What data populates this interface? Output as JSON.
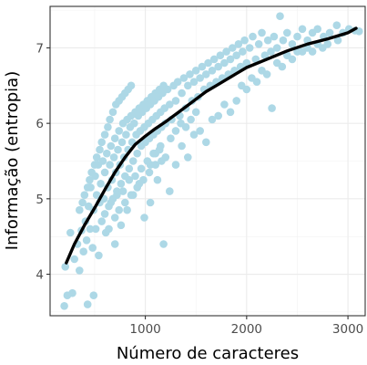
{
  "chart_data": {
    "type": "scatter",
    "title": "",
    "xlabel": "Número de caracteres",
    "ylabel": "Informação (entropia)",
    "x_ticks": [
      1000,
      2000,
      3000
    ],
    "y_ticks": [
      4,
      5,
      6,
      7
    ],
    "xlim": [
      60,
      3170
    ],
    "ylim": [
      3.45,
      7.55
    ],
    "grid": true,
    "legend": "none",
    "colors": {
      "points": "#add8e6",
      "trend": "#000000"
    },
    "trend_line": {
      "x": [
        220,
        300,
        400,
        500,
        600,
        700,
        800,
        900,
        1000,
        1100,
        1200,
        1300,
        1400,
        1500,
        1600,
        1700,
        1800,
        1900,
        2000,
        2200,
        2400,
        2600,
        2800,
        3000,
        3080
      ],
      "y": [
        4.15,
        4.4,
        4.65,
        4.88,
        5.12,
        5.35,
        5.55,
        5.72,
        5.83,
        5.93,
        6.02,
        6.12,
        6.22,
        6.32,
        6.42,
        6.5,
        6.58,
        6.66,
        6.74,
        6.85,
        6.96,
        7.05,
        7.12,
        7.2,
        7.26
      ]
    },
    "points": [
      [
        200,
        3.58
      ],
      [
        230,
        3.72
      ],
      [
        210,
        4.1
      ],
      [
        280,
        3.75
      ],
      [
        430,
        3.6
      ],
      [
        490,
        3.72
      ],
      [
        260,
        4.55
      ],
      [
        300,
        4.2
      ],
      [
        330,
        4.4
      ],
      [
        350,
        4.05
      ],
      [
        370,
        4.58
      ],
      [
        390,
        4.3
      ],
      [
        410,
        4.7
      ],
      [
        420,
        4.45
      ],
      [
        440,
        4.9
      ],
      [
        455,
        4.6
      ],
      [
        460,
        5.15
      ],
      [
        480,
        4.35
      ],
      [
        490,
        4.85
      ],
      [
        505,
        5.3
      ],
      [
        510,
        4.6
      ],
      [
        520,
        5.05
      ],
      [
        535,
        5.45
      ],
      [
        540,
        4.25
      ],
      [
        550,
        4.95
      ],
      [
        560,
        5.2
      ],
      [
        570,
        4.7
      ],
      [
        580,
        5.5
      ],
      [
        590,
        5.0
      ],
      [
        600,
        5.35
      ],
      [
        610,
        4.55
      ],
      [
        620,
        5.6
      ],
      [
        630,
        5.15
      ],
      [
        640,
        4.9
      ],
      [
        650,
        5.45
      ],
      [
        660,
        5.7
      ],
      [
        670,
        5.25
      ],
      [
        680,
        5.0
      ],
      [
        690,
        5.55
      ],
      [
        700,
        5.8
      ],
      [
        710,
        5.35
      ],
      [
        720,
        5.1
      ],
      [
        730,
        5.65
      ],
      [
        740,
        5.9
      ],
      [
        750,
        5.45
      ],
      [
        760,
        5.2
      ],
      [
        770,
        5.75
      ],
      [
        780,
        6.0
      ],
      [
        790,
        5.55
      ],
      [
        800,
        5.3
      ],
      [
        810,
        5.85
      ],
      [
        820,
        6.05
      ],
      [
        830,
        5.65
      ],
      [
        840,
        5.4
      ],
      [
        850,
        5.95
      ],
      [
        860,
        6.1
      ],
      [
        870,
        5.75
      ],
      [
        880,
        5.5
      ],
      [
        890,
        6.0
      ],
      [
        900,
        6.15
      ],
      [
        910,
        5.85
      ],
      [
        920,
        5.6
      ],
      [
        930,
        6.1
      ],
      [
        940,
        6.2
      ],
      [
        950,
        5.9
      ],
      [
        960,
        5.7
      ],
      [
        970,
        6.15
      ],
      [
        980,
        6.25
      ],
      [
        990,
        5.95
      ],
      [
        1000,
        5.75
      ],
      [
        1010,
        6.2
      ],
      [
        1020,
        6.3
      ],
      [
        1030,
        6.0
      ],
      [
        1040,
        5.8
      ],
      [
        1050,
        6.25
      ],
      [
        1060,
        6.35
      ],
      [
        1070,
        6.05
      ],
      [
        1080,
        5.85
      ],
      [
        1090,
        6.3
      ],
      [
        1100,
        6.4
      ],
      [
        1110,
        6.1
      ],
      [
        1120,
        5.9
      ],
      [
        1130,
        6.35
      ],
      [
        1140,
        6.45
      ],
      [
        1150,
        6.15
      ],
      [
        1160,
        5.95
      ],
      [
        1170,
        6.4
      ],
      [
        1180,
        6.5
      ],
      [
        1190,
        6.2
      ],
      [
        1200,
        6.0
      ],
      [
        1220,
        6.45
      ],
      [
        1240,
        6.25
      ],
      [
        1260,
        6.05
      ],
      [
        1280,
        6.5
      ],
      [
        1300,
        6.3
      ],
      [
        1320,
        6.55
      ],
      [
        1340,
        6.1
      ],
      [
        1360,
        6.4
      ],
      [
        1380,
        6.6
      ],
      [
        1400,
        6.2
      ],
      [
        1420,
        6.5
      ],
      [
        1440,
        6.65
      ],
      [
        1460,
        6.3
      ],
      [
        1480,
        6.55
      ],
      [
        1500,
        6.7
      ],
      [
        1520,
        6.35
      ],
      [
        1540,
        6.6
      ],
      [
        1560,
        6.75
      ],
      [
        1580,
        6.45
      ],
      [
        1600,
        6.65
      ],
      [
        1620,
        6.8
      ],
      [
        1640,
        6.5
      ],
      [
        1660,
        6.7
      ],
      [
        1680,
        6.85
      ],
      [
        1700,
        6.55
      ],
      [
        1720,
        6.75
      ],
      [
        1740,
        6.9
      ],
      [
        1760,
        6.6
      ],
      [
        1780,
        6.8
      ],
      [
        1800,
        6.95
      ],
      [
        1820,
        6.65
      ],
      [
        1840,
        6.85
      ],
      [
        1860,
        7.0
      ],
      [
        1880,
        6.7
      ],
      [
        1900,
        6.9
      ],
      [
        1920,
        7.05
      ],
      [
        1940,
        6.75
      ],
      [
        1960,
        6.95
      ],
      [
        1980,
        7.1
      ],
      [
        2000,
        6.8
      ],
      [
        2030,
        7.0
      ],
      [
        2060,
        7.15
      ],
      [
        2090,
        6.85
      ],
      [
        2120,
        7.05
      ],
      [
        2150,
        7.2
      ],
      [
        2180,
        6.9
      ],
      [
        2210,
        7.1
      ],
      [
        2240,
        6.95
      ],
      [
        2270,
        7.15
      ],
      [
        2300,
        7.0
      ],
      [
        2330,
        7.42
      ],
      [
        2360,
        7.1
      ],
      [
        2400,
        7.2
      ],
      [
        2450,
        7.05
      ],
      [
        2500,
        7.15
      ],
      [
        2550,
        7.25
      ],
      [
        2600,
        7.1
      ],
      [
        2650,
        7.2
      ],
      [
        2700,
        7.25
      ],
      [
        2760,
        7.15
      ],
      [
        2820,
        7.2
      ],
      [
        2890,
        7.3
      ],
      [
        2950,
        7.2
      ],
      [
        3010,
        7.25
      ],
      [
        3070,
        7.23
      ],
      [
        3110,
        7.22
      ],
      [
        700,
        4.4
      ],
      [
        760,
        4.65
      ],
      [
        820,
        4.85
      ],
      [
        880,
        5.05
      ],
      [
        940,
        5.2
      ],
      [
        990,
        4.75
      ],
      [
        1050,
        4.95
      ],
      [
        1120,
        5.25
      ],
      [
        1180,
        4.4
      ],
      [
        1240,
        5.1
      ],
      [
        1300,
        5.45
      ],
      [
        1360,
        5.7
      ],
      [
        1420,
        5.55
      ],
      [
        1480,
        5.85
      ],
      [
        1540,
        5.9
      ],
      [
        1600,
        5.75
      ],
      [
        1660,
        6.05
      ],
      [
        1720,
        6.1
      ],
      [
        1780,
        6.25
      ],
      [
        1840,
        6.15
      ],
      [
        1900,
        6.3
      ],
      [
        1950,
        6.5
      ],
      [
        2000,
        6.45
      ],
      [
        2050,
        6.6
      ],
      [
        2100,
        6.55
      ],
      [
        2150,
        6.7
      ],
      [
        2200,
        6.65
      ],
      [
        2250,
        6.2
      ],
      [
        2300,
        6.8
      ],
      [
        2350,
        6.75
      ],
      [
        2400,
        6.9
      ],
      [
        2450,
        6.85
      ],
      [
        2500,
        6.95
      ],
      [
        2550,
        6.95
      ],
      [
        2600,
        7.0
      ],
      [
        2650,
        6.95
      ],
      [
        2700,
        7.05
      ],
      [
        2750,
        7.0
      ],
      [
        2800,
        7.05
      ],
      [
        2900,
        7.1
      ],
      [
        1050,
        5.45
      ],
      [
        1100,
        5.6
      ],
      [
        1150,
        5.7
      ],
      [
        1200,
        5.55
      ],
      [
        1250,
        5.8
      ],
      [
        1300,
        5.9
      ],
      [
        1350,
        6.0
      ],
      [
        1400,
        5.95
      ],
      [
        1450,
        6.05
      ],
      [
        1500,
        6.15
      ],
      [
        600,
        4.8
      ],
      [
        640,
        4.6
      ],
      [
        660,
        4.95
      ],
      [
        700,
        4.75
      ],
      [
        720,
        5.05
      ],
      [
        740,
        4.85
      ],
      [
        780,
        5.1
      ],
      [
        800,
        4.95
      ],
      [
        840,
        5.25
      ],
      [
        860,
        5.05
      ],
      [
        900,
        5.3
      ],
      [
        920,
        5.15
      ],
      [
        960,
        5.4
      ],
      [
        980,
        5.25
      ],
      [
        1020,
        5.5
      ],
      [
        1040,
        5.35
      ],
      [
        1080,
        5.6
      ],
      [
        1100,
        5.45
      ],
      [
        1140,
        5.65
      ],
      [
        1160,
        5.5
      ],
      [
        350,
        4.85
      ],
      [
        380,
        4.95
      ],
      [
        400,
        5.05
      ],
      [
        430,
        5.15
      ],
      [
        450,
        5.25
      ],
      [
        470,
        5.35
      ],
      [
        500,
        5.45
      ],
      [
        520,
        5.55
      ],
      [
        550,
        5.65
      ],
      [
        570,
        5.75
      ],
      [
        600,
        5.85
      ],
      [
        630,
        5.95
      ],
      [
        650,
        6.05
      ],
      [
        680,
        6.15
      ],
      [
        710,
        6.25
      ],
      [
        740,
        6.3
      ],
      [
        770,
        6.35
      ],
      [
        800,
        6.4
      ],
      [
        830,
        6.45
      ],
      [
        860,
        6.5
      ]
    ]
  }
}
